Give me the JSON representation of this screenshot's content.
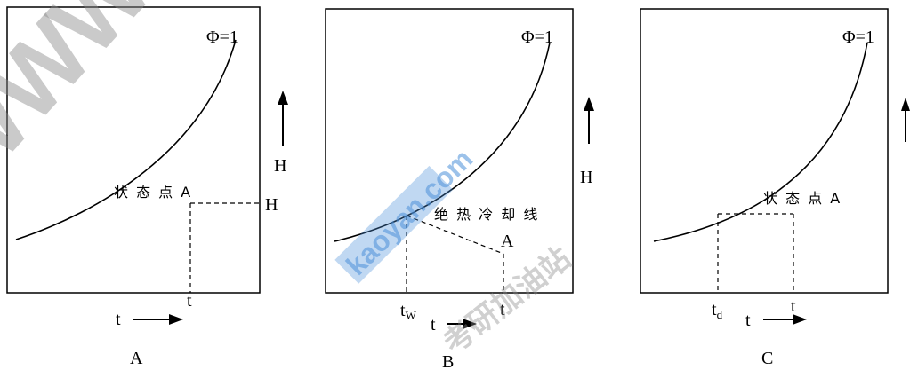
{
  "watermark": {
    "site_text": "WWW.KAOYAN.COM",
    "logo_text": "kaoyan.com",
    "chinese_text": "考研加油站",
    "color_grey": "#8a8a8a",
    "color_blue": "#4a90d9"
  },
  "panels": [
    {
      "id": "A",
      "curve_label": "Φ=1",
      "state_label": "状 态 点 A",
      "h_marker": "H",
      "h_axis_label": "H",
      "t_marker": "t",
      "t_axis_label": "t",
      "caption": "A"
    },
    {
      "id": "B",
      "curve_label": "Φ=1",
      "line_label": "绝 热 冷 却 线",
      "point_label": "A",
      "h_axis_label": "H",
      "tw_base": "t",
      "tw_sub": "W",
      "t_marker": "t",
      "t_axis_label": "t",
      "caption": "B"
    },
    {
      "id": "C",
      "curve_label": "Φ=1",
      "state_label": "状 态 点 A",
      "td_base": "t",
      "td_sub": "d",
      "t_marker": "t",
      "t_axis_label": "t",
      "caption": "C"
    }
  ]
}
